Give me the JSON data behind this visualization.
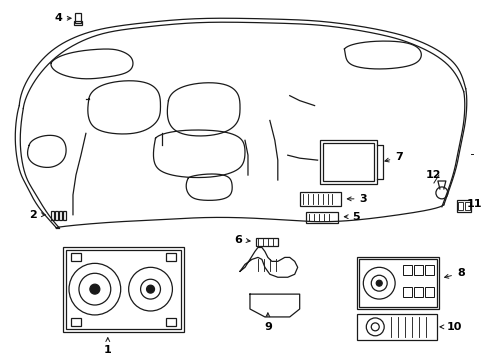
{
  "background_color": "#ffffff",
  "line_color": "#1a1a1a",
  "label_color": "#000000",
  "lw": 0.9
}
